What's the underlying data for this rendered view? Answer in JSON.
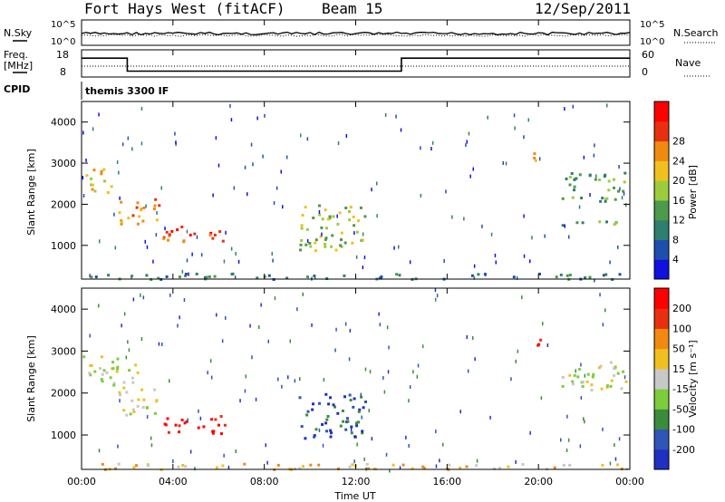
{
  "header": {
    "radar": "Fort Hays West (fitACF)",
    "beam": "Beam 15",
    "date": "12/Sep/2011"
  },
  "panels": {
    "nsky": {
      "label": "N.Sky",
      "tick_top": "10^5",
      "tick_bottom": "10^0",
      "right_label": "N.Search",
      "right_tick_top": "10^5",
      "right_tick_bottom": "10^0"
    },
    "freq": {
      "label_line1": "Freq.",
      "label_line2": "[MHz]",
      "tick_top": "18",
      "tick_bottom": "8",
      "right_label": "Nave",
      "right_tick_top": "60",
      "right_tick_bottom": "0"
    },
    "cpid": {
      "label": "CPID",
      "value": "themis 3300 IF"
    }
  },
  "chart_data": [
    {
      "type": "heatmap",
      "name": "power",
      "ylabel": "Slant Range [km]",
      "xlabel": "Time UT",
      "xlim": [
        0,
        24
      ],
      "ylim": [
        180,
        4500
      ],
      "x_ticks": [
        "00:00",
        "04:00",
        "08:00",
        "12:00",
        "16:00",
        "20:00",
        "00:00"
      ],
      "y_ticks": [
        1000,
        2000,
        3000,
        4000
      ],
      "colorbar": {
        "label": "Power [dB]",
        "ticks": [
          "4",
          "8",
          "12",
          "16",
          "20",
          "24",
          "28"
        ],
        "colors": [
          "#1010e0",
          "#1f4fae",
          "#2f7f6f",
          "#4c9a4c",
          "#9ccc3c",
          "#f0c020",
          "#f08a10",
          "#e83010",
          "#ff0000"
        ]
      },
      "regions": [
        {
          "t": [
            0.0,
            1.3
          ],
          "r": [
            2300,
            2900
          ],
          "level": 5
        },
        {
          "t": [
            1.5,
            3.5
          ],
          "r": [
            1550,
            2150
          ],
          "level": 6
        },
        {
          "t": [
            3.5,
            6.3
          ],
          "r": [
            1100,
            1500
          ],
          "level": 7
        },
        {
          "t": [
            9.5,
            12.4
          ],
          "r": [
            900,
            2000
          ],
          "level": 4
        },
        {
          "t": [
            19.7,
            20.2
          ],
          "r": [
            2900,
            3300
          ],
          "level": 6
        },
        {
          "t": [
            21.0,
            23.8
          ],
          "r": [
            2100,
            2800
          ],
          "level": 3
        },
        {
          "t": [
            20.5,
            23.8
          ],
          "r": [
            1500,
            1650
          ],
          "level": 3
        },
        {
          "t": [
            0.0,
            24.0
          ],
          "r": [
            200,
            340
          ],
          "level": 2
        }
      ]
    },
    {
      "type": "heatmap",
      "name": "velocity",
      "ylabel": "Slant Range [km]",
      "xlabel": "Time UT",
      "xlim": [
        0,
        24
      ],
      "ylim": [
        180,
        4500
      ],
      "x_ticks": [
        "00:00",
        "04:00",
        "08:00",
        "12:00",
        "16:00",
        "20:00",
        "00:00"
      ],
      "y_ticks": [
        1000,
        2000,
        3000,
        4000
      ],
      "colorbar": {
        "label": "Velocity [m s⁻¹]",
        "ticks": [
          "200",
          "100",
          "50",
          "15",
          "-15",
          "-50",
          "-100",
          "-200"
        ],
        "colors": [
          "#2030c0",
          "#2f55b8",
          "#3a8c3a",
          "#7ccc3c",
          "#c8c8c8",
          "#f0c020",
          "#f08a10",
          "#e83010",
          "#ff0000"
        ]
      },
      "regions": [
        {
          "t": [
            0.0,
            2.5
          ],
          "r": [
            2200,
            2900
          ],
          "level": 4
        },
        {
          "t": [
            1.5,
            3.3
          ],
          "r": [
            1500,
            2200
          ],
          "level": 4
        },
        {
          "t": [
            3.5,
            6.3
          ],
          "r": [
            1050,
            1500
          ],
          "level": 8
        },
        {
          "t": [
            9.5,
            12.4
          ],
          "r": [
            950,
            2000
          ],
          "level": 1
        },
        {
          "t": [
            19.7,
            20.2
          ],
          "r": [
            2900,
            3300
          ],
          "level": 8
        },
        {
          "t": [
            21.0,
            23.8
          ],
          "r": [
            2100,
            2800
          ],
          "level": 4
        },
        {
          "t": [
            0.0,
            24.0
          ],
          "r": [
            200,
            340
          ],
          "level": 5
        }
      ]
    }
  ]
}
